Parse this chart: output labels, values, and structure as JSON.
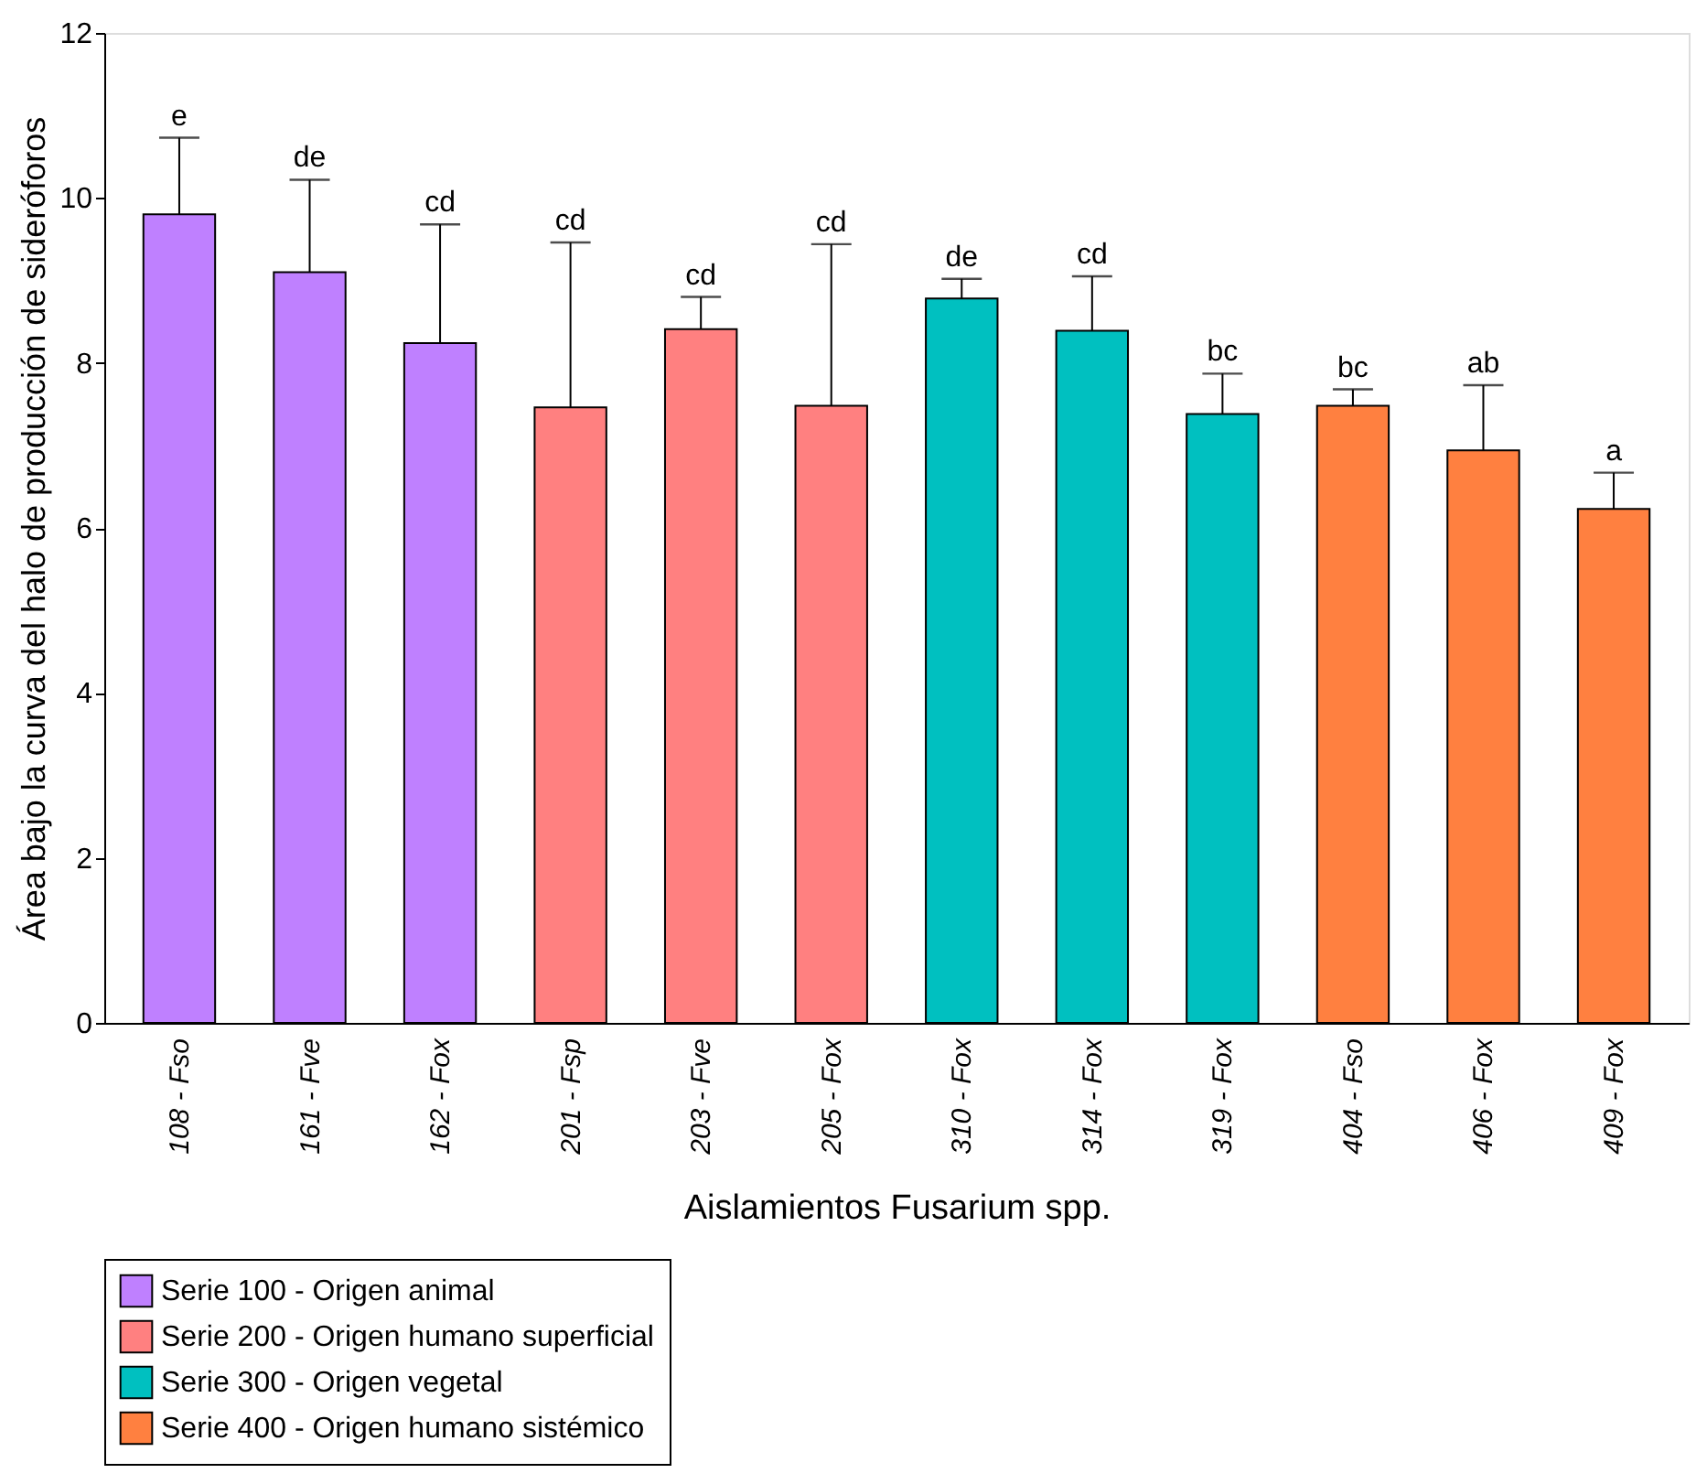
{
  "chart_data": {
    "type": "bar",
    "categories": [
      "108 - Fso",
      "161 - Fve",
      "162 - Fox",
      "201 - Fsp",
      "203 - Fve",
      "205 - Fox",
      "310 - Fox",
      "314 - Fox",
      "319 - Fox",
      "404 - Fso",
      "406 - Fox",
      "409 - Fox"
    ],
    "xlabel": "Aislamientos Fusarium spp.",
    "ylabel": "Área bajo la curva del halo de producción de sideróforos",
    "ylim": [
      0,
      12
    ],
    "yticks": [
      0,
      2,
      4,
      6,
      8,
      10,
      12
    ],
    "grid": false,
    "legend": "bottom",
    "series": [
      {
        "name": "Serie 100 - Origen animal",
        "color": "#bf80ff",
        "values": [
          9.8,
          9.1,
          8.24,
          null,
          null,
          null,
          null,
          null,
          null,
          null,
          null,
          null
        ],
        "errors": [
          [
            9.8,
            10.73
          ],
          [
            9.1,
            10.22
          ],
          [
            8.24,
            9.68
          ],
          null,
          null,
          null,
          null,
          null,
          null,
          null,
          null,
          null
        ]
      },
      {
        "name": "Serie 200 - Origen humano superficial",
        "color": "#ff8080",
        "values": [
          null,
          null,
          null,
          7.46,
          8.41,
          7.48,
          null,
          null,
          null,
          null,
          null,
          null
        ],
        "errors": [
          null,
          null,
          null,
          [
            7.46,
            9.46
          ],
          [
            8.41,
            8.8
          ],
          [
            7.48,
            9.44
          ],
          null,
          null,
          null,
          null,
          null,
          null
        ]
      },
      {
        "name": "Serie 300 - Origen vegetal",
        "color": "#00c0c0",
        "values": [
          null,
          null,
          null,
          null,
          null,
          null,
          8.78,
          8.39,
          7.38,
          null,
          null,
          null
        ],
        "errors": [
          null,
          null,
          null,
          null,
          null,
          null,
          [
            8.78,
            9.02
          ],
          [
            8.39,
            9.05
          ],
          [
            7.38,
            7.87
          ],
          null,
          null,
          null
        ]
      },
      {
        "name": "Serie 400 - Origen humano sistémico",
        "color": "#ff8040",
        "values": [
          null,
          null,
          null,
          null,
          null,
          null,
          null,
          null,
          null,
          7.48,
          6.94,
          6.23
        ],
        "errors": [
          null,
          null,
          null,
          null,
          null,
          null,
          null,
          null,
          null,
          [
            7.48,
            7.68
          ],
          [
            6.94,
            7.73
          ],
          [
            6.23,
            6.67
          ]
        ]
      }
    ],
    "annotations": [
      {
        "text": "e",
        "x": "108 - Fso",
        "y": 10.73
      },
      {
        "text": "de",
        "x": "161 - Fve",
        "y": 10.22
      },
      {
        "text": "cd",
        "x": "162 - Fox",
        "y": 9.68
      },
      {
        "text": "cd",
        "x": "201 - Fsp",
        "y": 9.46
      },
      {
        "text": "cd",
        "x": "203 - Fve",
        "y": 8.8
      },
      {
        "text": "cd",
        "x": "205 - Fox",
        "y": 9.44
      },
      {
        "text": "de",
        "x": "310 - Fox",
        "y": 9.02
      },
      {
        "text": "cd",
        "x": "314 - Fox",
        "y": 9.05
      },
      {
        "text": "bc",
        "x": "319 - Fox",
        "y": 7.87
      },
      {
        "text": "bc",
        "x": "404 - Fso",
        "y": 7.68
      },
      {
        "text": "ab",
        "x": "406 - Fox",
        "y": 7.73
      },
      {
        "text": "a",
        "x": "409 - Fox",
        "y": 6.67
      }
    ]
  }
}
